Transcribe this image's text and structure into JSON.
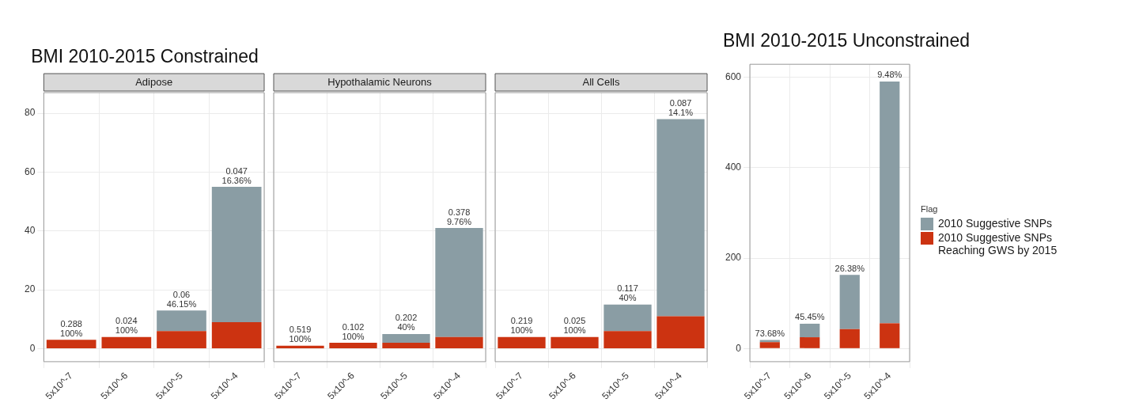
{
  "chart_data": [
    {
      "type": "bar",
      "title": "BMI 2010-2015 Constrained",
      "subtitle": "Adipose",
      "categories": [
        "5x10^-7",
        "5x10^-6",
        "5x10^-5",
        "5x10^-4"
      ],
      "stacked": true,
      "grid": true,
      "ylim": [
        -4.4,
        87
      ],
      "yticks": [
        0,
        20,
        40,
        60,
        80
      ],
      "series": [
        {
          "color": "#cc3311",
          "values": [
            3,
            4,
            6,
            9
          ]
        },
        {
          "color": "#8a9da4",
          "values": [
            0,
            0,
            7,
            46
          ]
        }
      ],
      "annotations": [
        {
          "text": "0.288\n100%",
          "x": "5x10^-7",
          "y": 3
        },
        {
          "text": "0.024\n100%",
          "x": "5x10^-6",
          "y": 4
        },
        {
          "text": "0.06\n46.15%",
          "x": "5x10^-5",
          "y": 13
        },
        {
          "text": "0.047\n16.36%",
          "x": "5x10^-4",
          "y": 55
        }
      ]
    },
    {
      "type": "bar",
      "subtitle": "Hypothalamic Neurons",
      "categories": [
        "5x10^-7",
        "5x10^-6",
        "5x10^-5",
        "5x10^-4"
      ],
      "stacked": true,
      "grid": true,
      "ylim": [
        -4.4,
        87
      ],
      "yticks": [
        0,
        20,
        40,
        60,
        80
      ],
      "tick_labels": "x",
      "series": [
        {
          "color": "#cc3311",
          "values": [
            1,
            2,
            2,
            4
          ]
        },
        {
          "color": "#8a9da4",
          "values": [
            0,
            0,
            3,
            37
          ]
        }
      ],
      "annotations": [
        {
          "text": "0.519\n100%",
          "x": "5x10^-7",
          "y": 1
        },
        {
          "text": "0.102\n100%",
          "x": "5x10^-6",
          "y": 2
        },
        {
          "text": "0.202\n40%",
          "x": "5x10^-5",
          "y": 5
        },
        {
          "text": "0.378\n9.76%",
          "x": "5x10^-4",
          "y": 41
        }
      ]
    },
    {
      "type": "bar",
      "subtitle": "All Cells",
      "categories": [
        "5x10^-7",
        "5x10^-6",
        "5x10^-5",
        "5x10^-4"
      ],
      "stacked": true,
      "grid": true,
      "ylim": [
        -4.4,
        87
      ],
      "yticks": [
        0,
        20,
        40,
        60,
        80
      ],
      "tick_labels": "x",
      "series": [
        {
          "color": "#cc3311",
          "values": [
            4,
            4,
            6,
            11
          ]
        },
        {
          "color": "#8a9da4",
          "values": [
            0,
            0,
            9,
            67
          ]
        }
      ],
      "annotations": [
        {
          "text": "0.219\n100%",
          "x": "5x10^-7",
          "y": 4
        },
        {
          "text": "0.025\n100%",
          "x": "5x10^-6",
          "y": 4
        },
        {
          "text": "0.117\n40%",
          "x": "5x10^-5",
          "y": 15
        },
        {
          "text": "0.087\n14.1%",
          "x": "5x10^-4",
          "y": 78
        }
      ]
    },
    {
      "type": "bar",
      "title": "BMI 2010-2015 Unconstrained",
      "categories": [
        "5x10^-7",
        "5x10^-6",
        "5x10^-5",
        "5x10^-4"
      ],
      "stacked": true,
      "grid": true,
      "ylim": [
        -29,
        629
      ],
      "yticks": [
        0,
        200,
        400,
        600
      ],
      "legend": "right",
      "legend_title": "Flag",
      "series": [
        {
          "name": "2010 Suggestive SNPs\nReaching GWS by 2015",
          "color": "#cc3311",
          "values": [
            14,
            25,
            43,
            56
          ]
        },
        {
          "name": "2010 Suggestive SNPs",
          "color": "#8a9da4",
          "values": [
            5,
            30,
            120,
            535
          ]
        }
      ],
      "annotations": [
        {
          "text": "73.68%",
          "x": "5x10^-7",
          "y": 19
        },
        {
          "text": "45.45%",
          "x": "5x10^-6",
          "y": 55
        },
        {
          "text": "26.38%",
          "x": "5x10^-5",
          "y": 163
        },
        {
          "text": "9.48%",
          "x": "5x10^-4",
          "y": 591
        }
      ]
    }
  ]
}
